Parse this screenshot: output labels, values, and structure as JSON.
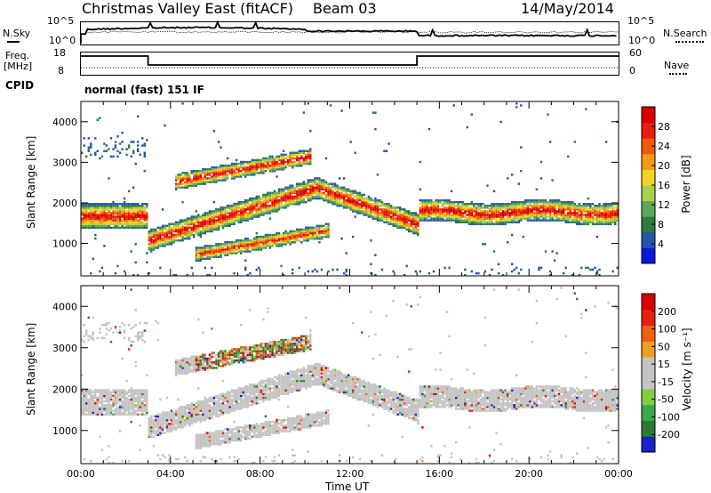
{
  "header": {
    "station": "Christmas Valley East (fitACF)",
    "beam": "Beam 03",
    "date": "14/May/2014"
  },
  "top_panels": {
    "nsky_label": "N.Sky",
    "nsky_ticks": [
      "10^5",
      "10^0"
    ],
    "nsearch_label": "N.Search",
    "nsearch_ticks": [
      "10^5",
      "10^0"
    ],
    "freq_label_1": "Freq.",
    "freq_label_2": "[MHz]",
    "freq_ticks": [
      "18",
      "8"
    ],
    "nave_label": "Nave",
    "nave_ticks": [
      "60",
      "0"
    ],
    "cpid_label": "CPID",
    "cpid_value": "normal (fast) 151 IF"
  },
  "chart_data": [
    {
      "type": "heatmap",
      "title": "",
      "xlabel": "Time UT",
      "ylabel": "Slant Range [km]",
      "x_ticks": [
        "00:00",
        "04:00",
        "08:00",
        "12:00",
        "16:00",
        "20:00",
        "00:00"
      ],
      "y_ticks": [
        "1000",
        "2000",
        "3000",
        "4000"
      ],
      "xlim_hours": [
        0,
        24
      ],
      "ylim_km": [
        200,
        4500
      ],
      "colorbar": {
        "label": "Power [dB]",
        "ticks": [
          "28",
          "24",
          "20",
          "16",
          "12",
          "8",
          "4"
        ],
        "range": [
          0,
          32
        ],
        "colors": [
          "#0a17d6",
          "#2555b0",
          "#2f7a3f",
          "#5da85a",
          "#a9d04a",
          "#f4d422",
          "#f49a14",
          "#f05a0a",
          "#e81d0a",
          "#d80000"
        ]
      },
      "features": [
        {
          "name": "main band",
          "t_start_h": 0,
          "t_end_h": 24,
          "range_km_at_start": 1650,
          "range_km_min": 1050,
          "range_km_peak": 2350,
          "peak_time_h": 10.5
        },
        {
          "name": "upper arc",
          "t_start_h": 4.5,
          "t_end_h": 10.0,
          "range_km": [
            2500,
            3200
          ]
        },
        {
          "name": "lower arc",
          "t_start_h": 5.0,
          "t_end_h": 11.0,
          "range_km": [
            600,
            1400
          ]
        }
      ]
    },
    {
      "type": "heatmap",
      "title": "",
      "xlabel": "Time UT",
      "ylabel": "Slant Range [km]",
      "x_ticks": [
        "00:00",
        "04:00",
        "08:00",
        "12:00",
        "16:00",
        "20:00",
        "00:00"
      ],
      "y_ticks": [
        "1000",
        "2000",
        "3000",
        "4000"
      ],
      "xlim_hours": [
        0,
        24
      ],
      "ylim_km": [
        200,
        4500
      ],
      "colorbar": {
        "label": "Velocity [m s⁻¹]",
        "ticks": [
          "200",
          "100",
          "50",
          "15",
          "-15",
          "-50",
          "-100",
          "-200"
        ],
        "range": [
          -250,
          250
        ],
        "colors": [
          "#1a22c8",
          "#2a7a36",
          "#3aa84a",
          "#7fd040",
          "#c4c4c4",
          "#c4c4c4",
          "#f0a020",
          "#f06010",
          "#e82010",
          "#d80000"
        ]
      }
    }
  ]
}
